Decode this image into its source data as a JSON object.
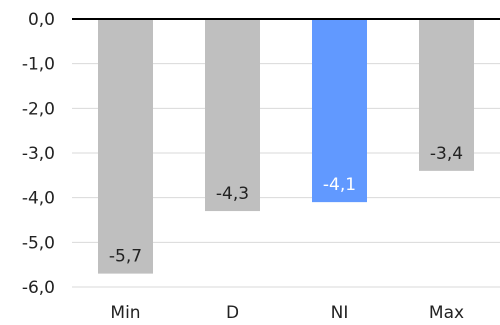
{
  "chart_data": {
    "type": "bar",
    "categories": [
      "Min",
      "D",
      "NI",
      "Max"
    ],
    "values": [
      -5.7,
      -4.3,
      -4.1,
      -3.4
    ],
    "value_labels": [
      "-5,7",
      "-4,3",
      "-4,1",
      "-3,4"
    ],
    "y_ticks": [
      0,
      -1,
      -2,
      -3,
      -4,
      -5,
      -6
    ],
    "y_tick_labels": [
      "0,0",
      "-1,0",
      "-2,0",
      "-3,0",
      "-4,0",
      "-5,0",
      "-6,0"
    ],
    "ylim": [
      -6,
      0
    ],
    "grid": true,
    "legend": "none",
    "colors": {
      "default_bar": "#bfbfbf",
      "highlight_bar": "#6199ff",
      "default_label": "#222222",
      "highlight_label": "#ffffff"
    },
    "highlight_index": 2
  }
}
